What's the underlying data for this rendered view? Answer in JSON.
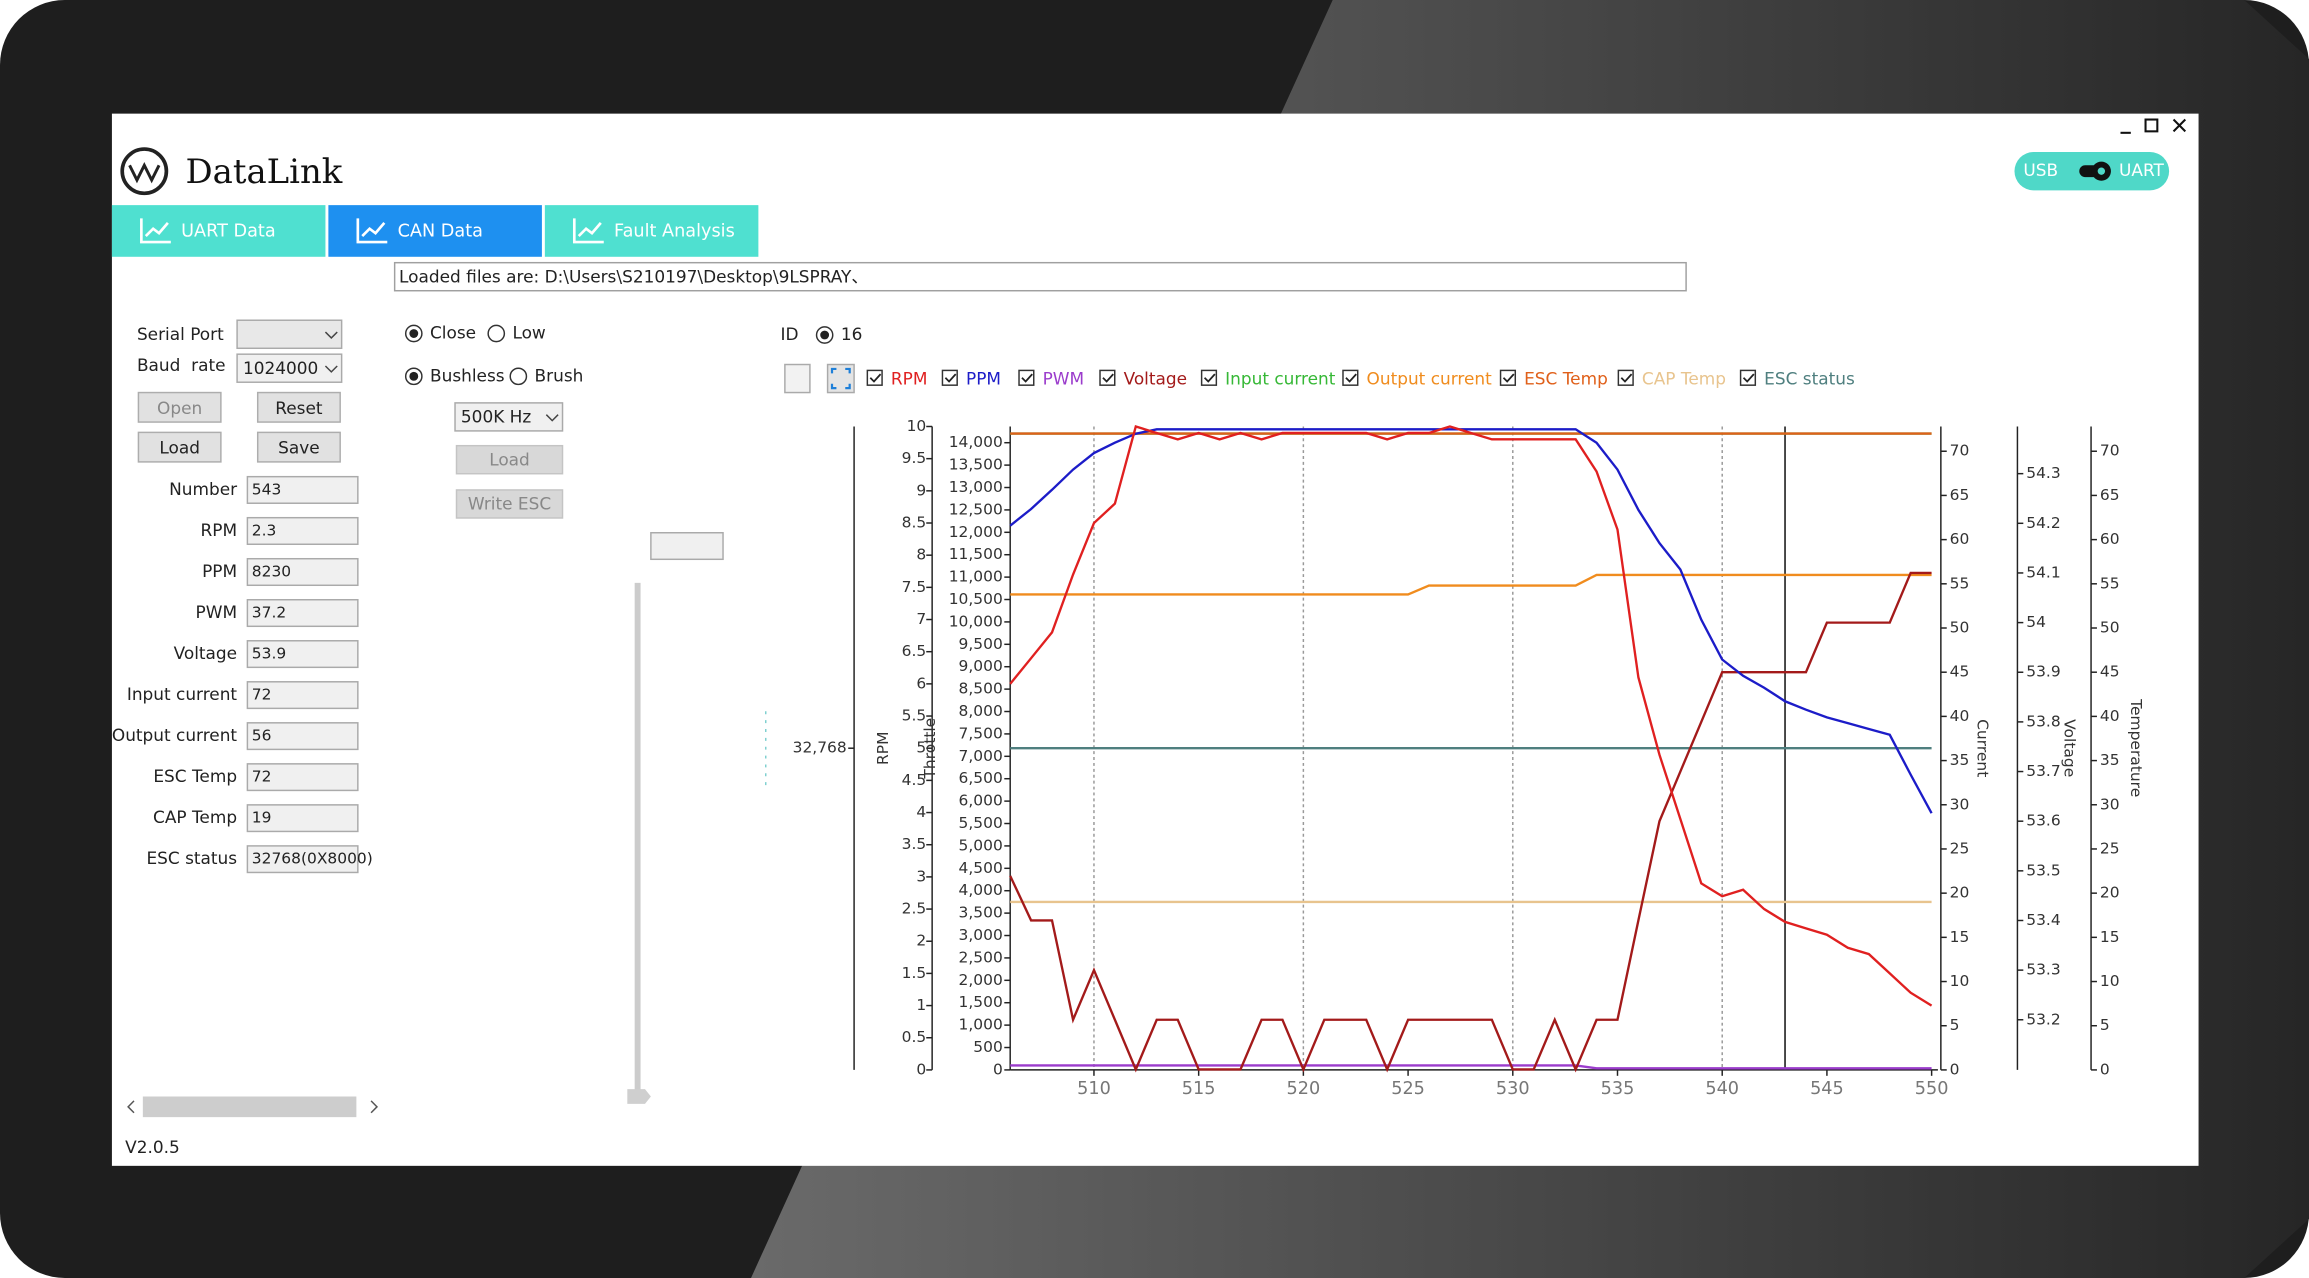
{
  "header": {
    "app_name": "DataLink",
    "toggle_left": "USB",
    "toggle_right": "UART"
  },
  "tabs": [
    "UART Data",
    "CAN Data",
    "Fault Analysis"
  ],
  "loaded_files": "Loaded files are: D:\\Users\\S210197\\Desktop\\9LSPRAY、",
  "serial": {
    "port_label": "Serial Port",
    "baud_label": "Baud  rate",
    "baud_value": "1024000",
    "buttons": [
      "Open",
      "Reset",
      "Load",
      "Save"
    ]
  },
  "fields": [
    {
      "label": "Number",
      "value": 543
    },
    {
      "label": "RPM",
      "value": 2.3
    },
    {
      "label": "PPM",
      "value": 8230
    },
    {
      "label": "PWM",
      "value": 37.2
    },
    {
      "label": "Voltage",
      "value": 53.9
    },
    {
      "label": "Input current",
      "value": 72
    },
    {
      "label": "Output current",
      "value": 56
    },
    {
      "label": "ESC Temp",
      "value": 72
    },
    {
      "label": "CAP Temp",
      "value": 19
    },
    {
      "label": "ESC status",
      "value": "32768(0X8000)"
    }
  ],
  "controls": {
    "radios": [
      {
        "label": "Close",
        "checked": true
      },
      {
        "label": "Low",
        "checked": false
      },
      {
        "label": "Bushless",
        "checked": true
      },
      {
        "label": "Brush",
        "checked": false
      }
    ],
    "frequency": "500K Hz",
    "buttons": [
      "Load",
      "Write ESC"
    ]
  },
  "id": {
    "label": "ID",
    "value": 16
  },
  "version": "V2.0.5",
  "chart_data": {
    "type": "line",
    "x": [
      506,
      507,
      508,
      509,
      510,
      511,
      512,
      513,
      514,
      515,
      516,
      517,
      518,
      519,
      520,
      521,
      522,
      523,
      524,
      525,
      526,
      527,
      528,
      529,
      530,
      531,
      532,
      533,
      534,
      535,
      536,
      537,
      538,
      539,
      540,
      541,
      542,
      543,
      544,
      545,
      546,
      547,
      548,
      549,
      550
    ],
    "xlim": [
      506,
      550.3
    ],
    "xticks": [
      510,
      515,
      520,
      525,
      530,
      535,
      540,
      545,
      550
    ],
    "grid": true,
    "axes": [
      {
        "id": "esc",
        "title": "RPM",
        "lim": [
          0,
          65536
        ],
        "ticks": [
          {
            "value": 32768,
            "label": "32,768"
          }
        ]
      },
      {
        "id": "throttle",
        "title": "Throttle",
        "lim": [
          0,
          10
        ],
        "ticks": [
          0,
          0.5,
          1,
          1.5,
          2,
          2.5,
          3,
          3.5,
          4,
          4.5,
          5,
          5.5,
          6,
          6.5,
          7,
          7.5,
          8,
          8.5,
          9,
          9.5,
          10
        ]
      },
      {
        "id": "rpm",
        "lim": [
          0,
          14362
        ],
        "ticks": [
          0,
          500,
          {
            "value": 1000,
            "label": "1,000"
          },
          {
            "value": 1500,
            "label": "1,500"
          },
          {
            "value": 2000,
            "label": "2,000"
          },
          {
            "value": 2500,
            "label": "2,500"
          },
          {
            "value": 3000,
            "label": "3,000"
          },
          {
            "value": 3500,
            "label": "3,500"
          },
          {
            "value": 4000,
            "label": "4,000"
          },
          {
            "value": 4500,
            "label": "4,500"
          },
          {
            "value": 5000,
            "label": "5,000"
          },
          {
            "value": 5500,
            "label": "5,500"
          },
          {
            "value": 6000,
            "label": "6,000"
          },
          {
            "value": 6500,
            "label": "6,500"
          },
          {
            "value": 7000,
            "label": "7,000"
          },
          {
            "value": 7500,
            "label": "7,500"
          },
          {
            "value": 8000,
            "label": "8,000"
          },
          {
            "value": 8500,
            "label": "8,500"
          },
          {
            "value": 9000,
            "label": "9,000"
          },
          {
            "value": 9500,
            "label": "9,500"
          },
          {
            "value": 10000,
            "label": "10,000"
          },
          {
            "value": 10500,
            "label": "10,500"
          },
          {
            "value": 11000,
            "label": "11,000"
          },
          {
            "value": 11500,
            "label": "11,500"
          },
          {
            "value": 12000,
            "label": "12,000"
          },
          {
            "value": 12500,
            "label": "12,500"
          },
          {
            "value": 13000,
            "label": "13,000"
          },
          {
            "value": 13500,
            "label": "13,500"
          },
          {
            "value": 14000,
            "label": "14,000"
          }
        ]
      },
      {
        "id": "current",
        "title": "Current",
        "lim": [
          0,
          72.8
        ],
        "ticks": [
          0,
          5,
          10,
          15,
          20,
          25,
          30,
          35,
          40,
          45,
          50,
          55,
          60,
          65,
          70
        ]
      },
      {
        "id": "voltage",
        "title": "Voltage",
        "lim": [
          53.099,
          54.395
        ],
        "ticks": [
          53.2,
          53.3,
          53.4,
          53.5,
          53.6,
          53.7,
          53.8,
          53.9,
          54,
          54.1,
          54.2,
          54.3
        ]
      },
      {
        "id": "temp",
        "title": "Temperature",
        "lim": [
          0,
          72.8
        ],
        "ticks": [
          0,
          5,
          10,
          15,
          20,
          25,
          30,
          35,
          40,
          45,
          50,
          55,
          60,
          65,
          70
        ]
      }
    ],
    "series": [
      {
        "name": "RPM",
        "color": "#e02020",
        "axis": "throttle",
        "values": [
          6.0,
          6.4,
          6.8,
          7.7,
          8.5,
          8.8,
          10,
          9.9,
          9.8,
          9.9,
          9.8,
          9.9,
          9.8,
          9.9,
          9.9,
          9.9,
          9.9,
          9.9,
          9.8,
          9.9,
          9.9,
          10,
          9.9,
          9.8,
          9.8,
          9.8,
          9.8,
          9.8,
          9.3,
          8.4,
          6.1,
          4.9,
          3.9,
          2.9,
          2.7,
          2.8,
          2.5,
          2.3,
          2.2,
          2.1,
          1.9,
          1.8,
          1.5,
          1.2,
          1.0
        ]
      },
      {
        "name": "PPM",
        "color": "#1c1cc8",
        "axis": "rpm",
        "values": [
          12150,
          12520,
          12950,
          13400,
          13770,
          14000,
          14200,
          14300,
          14300,
          14300,
          14300,
          14300,
          14300,
          14300,
          14300,
          14300,
          14300,
          14300,
          14300,
          14300,
          14300,
          14300,
          14300,
          14300,
          14300,
          14300,
          14300,
          14300,
          14000,
          13400,
          12500,
          11760,
          11170,
          10050,
          9160,
          8800,
          8530,
          8230,
          8040,
          7870,
          7740,
          7610,
          7480,
          6590,
          5730
        ]
      },
      {
        "name": "PWM",
        "color": "#9b3ccc",
        "axis": "rpm",
        "values": [
          100,
          100,
          100,
          100,
          100,
          100,
          100,
          100,
          100,
          100,
          100,
          100,
          100,
          100,
          100,
          100,
          100,
          100,
          100,
          100,
          100,
          100,
          100,
          100,
          100,
          100,
          100,
          100,
          37.2,
          37.2,
          37.2,
          37.2,
          37.2,
          37.2,
          37.2,
          37.2,
          37.2,
          37.2,
          37.2,
          37.2,
          37.2,
          37.2,
          37.2,
          37.2,
          37.2
        ]
      },
      {
        "name": "Voltage",
        "color": "#a31a1a",
        "axis": "voltage",
        "values": [
          53.49,
          53.4,
          53.4,
          53.2,
          53.3,
          53.2,
          53.1,
          53.2,
          53.2,
          53.1,
          53.1,
          53.1,
          53.2,
          53.2,
          53.1,
          53.2,
          53.2,
          53.2,
          53.1,
          53.2,
          53.2,
          53.2,
          53.2,
          53.2,
          53.1,
          53.1,
          53.2,
          53.1,
          53.2,
          53.2,
          53.4,
          53.6,
          53.7,
          53.8,
          53.9,
          53.9,
          53.9,
          53.9,
          53.9,
          54.0,
          54.0,
          54.0,
          54.0,
          54.1,
          54.1
        ]
      },
      {
        "name": "Input current",
        "color": "#36b836",
        "axis": "current",
        "values": [
          72,
          72,
          72,
          72,
          72,
          72,
          72,
          72,
          72,
          72,
          72,
          72,
          72,
          72,
          72,
          72,
          72,
          72,
          72,
          72,
          72,
          72,
          72,
          72,
          72,
          72,
          72,
          72,
          72,
          72,
          72,
          72,
          72,
          72,
          72,
          72,
          72,
          72,
          72,
          72,
          72,
          72,
          72,
          72,
          72
        ]
      },
      {
        "name": "Output current",
        "color": "#f08c1e",
        "axis": "current",
        "values": [
          53.8,
          53.8,
          53.8,
          53.8,
          53.8,
          53.8,
          53.8,
          53.8,
          53.8,
          53.8,
          53.8,
          53.8,
          53.8,
          53.8,
          53.8,
          53.8,
          53.8,
          53.8,
          53.8,
          53.8,
          54.8,
          54.8,
          54.8,
          54.8,
          54.8,
          54.8,
          54.8,
          54.8,
          56,
          56,
          56,
          56,
          56,
          56,
          56,
          56,
          56,
          56,
          56,
          56,
          56,
          56,
          56,
          56,
          56
        ]
      },
      {
        "name": "ESC Temp",
        "color": "#e0601a",
        "axis": "temp",
        "values": [
          72,
          72,
          72,
          72,
          72,
          72,
          72,
          72,
          72,
          72,
          72,
          72,
          72,
          72,
          72,
          72,
          72,
          72,
          72,
          72,
          72,
          72,
          72,
          72,
          72,
          72,
          72,
          72,
          72,
          72,
          72,
          72,
          72,
          72,
          72,
          72,
          72,
          72,
          72,
          72,
          72,
          72,
          72,
          72,
          72
        ]
      },
      {
        "name": "CAP Temp",
        "color": "#e8c48e",
        "axis": "temp",
        "values": [
          19,
          19,
          19,
          19,
          19,
          19,
          19,
          19,
          19,
          19,
          19,
          19,
          19,
          19,
          19,
          19,
          19,
          19,
          19,
          19,
          19,
          19,
          19,
          19,
          19,
          19,
          19,
          19,
          19,
          19,
          19,
          19,
          19,
          19,
          19,
          19,
          19,
          19,
          19,
          19,
          19,
          19,
          19,
          19,
          19
        ]
      },
      {
        "name": "ESC status",
        "color": "#4f7f7f",
        "axis": "esc",
        "values": [
          32768,
          32768,
          32768,
          32768,
          32768,
          32768,
          32768,
          32768,
          32768,
          32768,
          32768,
          32768,
          32768,
          32768,
          32768,
          32768,
          32768,
          32768,
          32768,
          32768,
          32768,
          32768,
          32768,
          32768,
          32768,
          32768,
          32768,
          32768,
          32768,
          32768,
          32768,
          32768,
          32768,
          32768,
          32768,
          32768,
          32768,
          32768,
          32768,
          32768,
          32768,
          32768,
          32768,
          32768,
          32768
        ]
      }
    ]
  }
}
